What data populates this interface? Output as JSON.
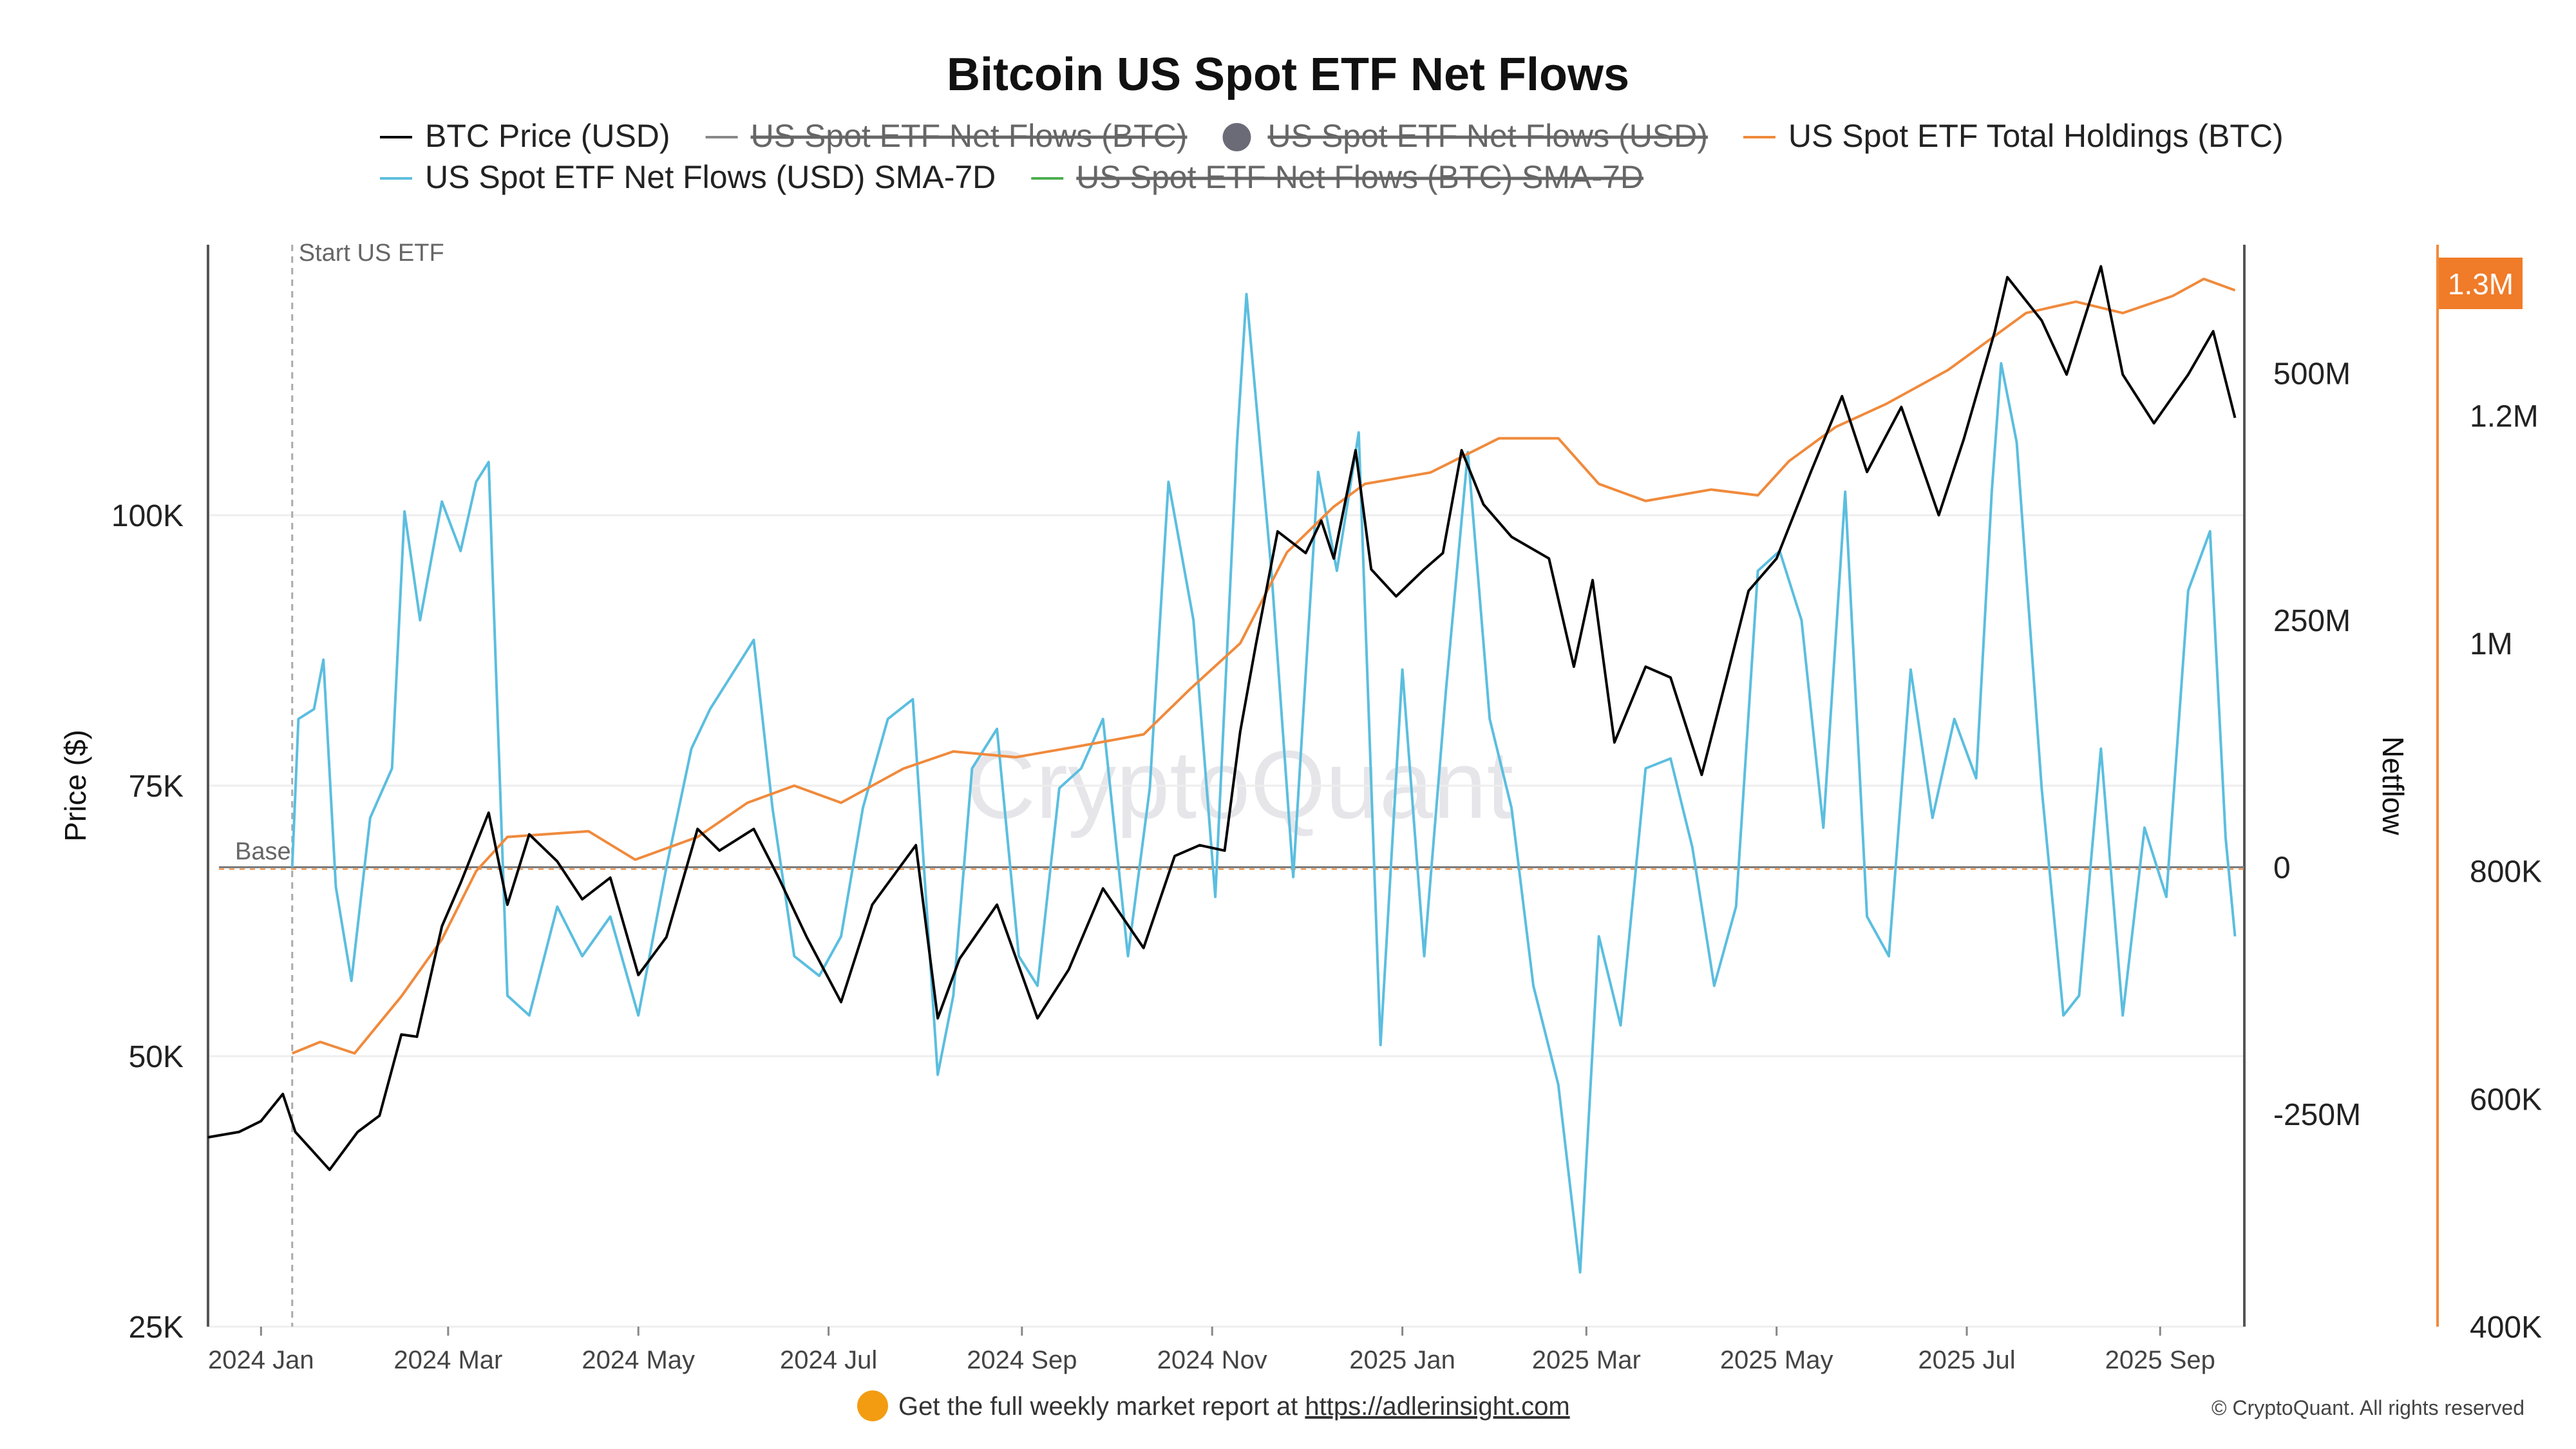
{
  "chart_data": {
    "type": "line",
    "title": "Bitcoin US Spot ETF Net Flows",
    "legend": [
      {
        "label": "BTC Price (USD)",
        "color": "#000000",
        "active": true
      },
      {
        "label": "US Spot ETF Net Flows (BTC)",
        "color": "#888888",
        "active": false
      },
      {
        "label": "US Spot ETF Net Flows (USD)",
        "color": "#777777",
        "active": false
      },
      {
        "label": "US Spot ETF Total Holdings (BTC)",
        "color": "#f08a3c",
        "active": true
      },
      {
        "label": "US Spot ETF Net Flows (USD) SMA-7D",
        "color": "#5bbedf",
        "active": true
      },
      {
        "label": "US Spot ETF Net Flows (BTC) SMA-7D",
        "color": "#4caf50",
        "active": false
      }
    ],
    "legend_position": "top-center",
    "x_ticks": [
      "2024 Jan",
      "2024 Mar",
      "2024 May",
      "2024 Jul",
      "2024 Sep",
      "2024 Nov",
      "2025 Jan",
      "2025 Mar",
      "2025 May",
      "2025 Jul",
      "2025 Sep"
    ],
    "x_range": [
      "2023-12-15",
      "2025-09-28"
    ],
    "y_left": {
      "label": "Price ($)",
      "ticks": [
        "25K",
        "50K",
        "75K",
        "100K"
      ],
      "range": [
        25000,
        125000
      ]
    },
    "y_right_netflow": {
      "label": "Netflow",
      "ticks": [
        "-250M",
        "0",
        "250M",
        "500M"
      ],
      "range": [
        -465000000,
        630000000
      ]
    },
    "y_right_holdings": {
      "ticks": [
        "400K",
        "600K",
        "800K",
        "1M",
        "1.2M"
      ],
      "range": [
        400000,
        1350000
      ],
      "current_badge": "1.3M"
    },
    "grid": "horizontal",
    "annotations": {
      "start_label": "Start US ETF",
      "start_date": "2024-01-11",
      "base_label": "Base"
    },
    "watermark": "CryptoQuant",
    "series": [
      {
        "name": "BTC Price (USD)",
        "axis": "left",
        "color": "#000000",
        "points": [
          [
            "2023-12-15",
            42500
          ],
          [
            "2023-12-25",
            43000
          ],
          [
            "2024-01-01",
            44000
          ],
          [
            "2024-01-08",
            46500
          ],
          [
            "2024-01-12",
            43000
          ],
          [
            "2024-01-23",
            39500
          ],
          [
            "2024-02-01",
            43000
          ],
          [
            "2024-02-08",
            44500
          ],
          [
            "2024-02-15",
            52000
          ],
          [
            "2024-02-20",
            51800
          ],
          [
            "2024-02-28",
            62000
          ],
          [
            "2024-03-05",
            66000
          ],
          [
            "2024-03-14",
            72500
          ],
          [
            "2024-03-20",
            64000
          ],
          [
            "2024-03-27",
            70500
          ],
          [
            "2024-04-05",
            68000
          ],
          [
            "2024-04-13",
            64500
          ],
          [
            "2024-04-22",
            66500
          ],
          [
            "2024-05-01",
            57500
          ],
          [
            "2024-05-10",
            61000
          ],
          [
            "2024-05-20",
            71000
          ],
          [
            "2024-05-27",
            69000
          ],
          [
            "2024-06-07",
            71000
          ],
          [
            "2024-06-15",
            66500
          ],
          [
            "2024-06-24",
            61000
          ],
          [
            "2024-07-05",
            55000
          ],
          [
            "2024-07-15",
            64000
          ],
          [
            "2024-07-29",
            69500
          ],
          [
            "2024-08-05",
            53500
          ],
          [
            "2024-08-12",
            59000
          ],
          [
            "2024-08-24",
            64000
          ],
          [
            "2024-09-06",
            53500
          ],
          [
            "2024-09-16",
            58000
          ],
          [
            "2024-09-27",
            65500
          ],
          [
            "2024-10-10",
            60000
          ],
          [
            "2024-10-20",
            68500
          ],
          [
            "2024-10-28",
            69500
          ],
          [
            "2024-11-05",
            69000
          ],
          [
            "2024-11-10",
            80000
          ],
          [
            "2024-11-15",
            88000
          ],
          [
            "2024-11-22",
            98500
          ],
          [
            "2024-12-01",
            96500
          ],
          [
            "2024-12-06",
            99500
          ],
          [
            "2024-12-10",
            96000
          ],
          [
            "2024-12-17",
            106000
          ],
          [
            "2024-12-22",
            95000
          ],
          [
            "2024-12-30",
            92500
          ],
          [
            "2025-01-08",
            95000
          ],
          [
            "2025-01-14",
            96500
          ],
          [
            "2025-01-20",
            106000
          ],
          [
            "2025-01-27",
            101000
          ],
          [
            "2025-02-05",
            98000
          ],
          [
            "2025-02-17",
            96000
          ],
          [
            "2025-02-25",
            86000
          ],
          [
            "2025-03-03",
            94000
          ],
          [
            "2025-03-10",
            79000
          ],
          [
            "2025-03-20",
            86000
          ],
          [
            "2025-03-28",
            85000
          ],
          [
            "2025-04-07",
            76000
          ],
          [
            "2025-04-15",
            85000
          ],
          [
            "2025-04-22",
            93000
          ],
          [
            "2025-05-01",
            96000
          ],
          [
            "2025-05-12",
            104000
          ],
          [
            "2025-05-22",
            111000
          ],
          [
            "2025-05-30",
            104000
          ],
          [
            "2025-06-10",
            110000
          ],
          [
            "2025-06-22",
            100000
          ],
          [
            "2025-06-30",
            107000
          ],
          [
            "2025-07-10",
            117000
          ],
          [
            "2025-07-14",
            122000
          ],
          [
            "2025-07-25",
            118000
          ],
          [
            "2025-08-02",
            113000
          ],
          [
            "2025-08-13",
            123000
          ],
          [
            "2025-08-20",
            113000
          ],
          [
            "2025-08-30",
            108500
          ],
          [
            "2025-09-10",
            113000
          ],
          [
            "2025-09-18",
            117000
          ],
          [
            "2025-09-25",
            109000
          ]
        ]
      },
      {
        "name": "US Spot ETF Total Holdings (BTC)",
        "axis": "right_holdings",
        "color": "#f08a3c",
        "points": [
          [
            "2024-01-11",
            640000
          ],
          [
            "2024-01-20",
            650000
          ],
          [
            "2024-01-31",
            640000
          ],
          [
            "2024-02-15",
            690000
          ],
          [
            "2024-02-28",
            740000
          ],
          [
            "2024-03-10",
            800000
          ],
          [
            "2024-03-20",
            830000
          ],
          [
            "2024-04-15",
            835000
          ],
          [
            "2024-04-30",
            810000
          ],
          [
            "2024-05-20",
            830000
          ],
          [
            "2024-06-05",
            860000
          ],
          [
            "2024-06-20",
            875000
          ],
          [
            "2024-07-05",
            860000
          ],
          [
            "2024-07-25",
            890000
          ],
          [
            "2024-08-10",
            905000
          ],
          [
            "2024-08-30",
            900000
          ],
          [
            "2024-09-20",
            910000
          ],
          [
            "2024-10-10",
            920000
          ],
          [
            "2024-10-25",
            960000
          ],
          [
            "2024-11-10",
            1000000
          ],
          [
            "2024-11-25",
            1080000
          ],
          [
            "2024-12-10",
            1120000
          ],
          [
            "2024-12-20",
            1140000
          ],
          [
            "2025-01-10",
            1150000
          ],
          [
            "2025-02-01",
            1180000
          ],
          [
            "2025-02-20",
            1180000
          ],
          [
            "2025-03-05",
            1140000
          ],
          [
            "2025-03-20",
            1125000
          ],
          [
            "2025-04-10",
            1135000
          ],
          [
            "2025-04-25",
            1130000
          ],
          [
            "2025-05-05",
            1160000
          ],
          [
            "2025-05-20",
            1190000
          ],
          [
            "2025-06-05",
            1210000
          ],
          [
            "2025-06-25",
            1240000
          ],
          [
            "2025-07-05",
            1260000
          ],
          [
            "2025-07-20",
            1290000
          ],
          [
            "2025-08-05",
            1300000
          ],
          [
            "2025-08-20",
            1290000
          ],
          [
            "2025-09-05",
            1305000
          ],
          [
            "2025-09-15",
            1320000
          ],
          [
            "2025-09-25",
            1310000
          ]
        ]
      },
      {
        "name": "US Spot ETF Net Flows (USD) SMA-7D",
        "axis": "right_netflow",
        "color": "#5bbedf",
        "points": [
          [
            "2024-01-11",
            0
          ],
          [
            "2024-01-13",
            150000000
          ],
          [
            "2024-01-18",
            160000000
          ],
          [
            "2024-01-21",
            210000000
          ],
          [
            "2024-01-25",
            -20000000
          ],
          [
            "2024-01-30",
            -115000000
          ],
          [
            "2024-02-05",
            50000000
          ],
          [
            "2024-02-12",
            100000000
          ],
          [
            "2024-02-16",
            360000000
          ],
          [
            "2024-02-21",
            250000000
          ],
          [
            "2024-02-28",
            370000000
          ],
          [
            "2024-03-05",
            320000000
          ],
          [
            "2024-03-10",
            390000000
          ],
          [
            "2024-03-14",
            410000000
          ],
          [
            "2024-03-20",
            -130000000
          ],
          [
            "2024-03-27",
            -150000000
          ],
          [
            "2024-04-05",
            -40000000
          ],
          [
            "2024-04-13",
            -90000000
          ],
          [
            "2024-04-22",
            -50000000
          ],
          [
            "2024-05-01",
            -150000000
          ],
          [
            "2024-05-10",
            0
          ],
          [
            "2024-05-18",
            120000000
          ],
          [
            "2024-05-24",
            160000000
          ],
          [
            "2024-06-07",
            230000000
          ],
          [
            "2024-06-13",
            60000000
          ],
          [
            "2024-06-20",
            -90000000
          ],
          [
            "2024-06-28",
            -110000000
          ],
          [
            "2024-07-05",
            -70000000
          ],
          [
            "2024-07-12",
            60000000
          ],
          [
            "2024-07-20",
            150000000
          ],
          [
            "2024-07-28",
            170000000
          ],
          [
            "2024-08-05",
            -210000000
          ],
          [
            "2024-08-10",
            -130000000
          ],
          [
            "2024-08-16",
            100000000
          ],
          [
            "2024-08-24",
            140000000
          ],
          [
            "2024-08-31",
            -90000000
          ],
          [
            "2024-09-06",
            -120000000
          ],
          [
            "2024-09-13",
            80000000
          ],
          [
            "2024-09-20",
            100000000
          ],
          [
            "2024-09-27",
            150000000
          ],
          [
            "2024-10-05",
            -90000000
          ],
          [
            "2024-10-12",
            80000000
          ],
          [
            "2024-10-18",
            390000000
          ],
          [
            "2024-10-26",
            250000000
          ],
          [
            "2024-11-02",
            -30000000
          ],
          [
            "2024-11-09",
            430000000
          ],
          [
            "2024-11-12",
            580000000
          ],
          [
            "2024-11-20",
            300000000
          ],
          [
            "2024-11-27",
            -10000000
          ],
          [
            "2024-12-05",
            400000000
          ],
          [
            "2024-12-11",
            300000000
          ],
          [
            "2024-12-18",
            440000000
          ],
          [
            "2024-12-25",
            -180000000
          ],
          [
            "2025-01-01",
            200000000
          ],
          [
            "2025-01-08",
            -90000000
          ],
          [
            "2025-01-15",
            180000000
          ],
          [
            "2025-01-22",
            420000000
          ],
          [
            "2025-01-29",
            150000000
          ],
          [
            "2025-02-05",
            60000000
          ],
          [
            "2025-02-12",
            -120000000
          ],
          [
            "2025-02-20",
            -220000000
          ],
          [
            "2025-02-27",
            -410000000
          ],
          [
            "2025-03-05",
            -70000000
          ],
          [
            "2025-03-12",
            -160000000
          ],
          [
            "2025-03-20",
            100000000
          ],
          [
            "2025-03-28",
            110000000
          ],
          [
            "2025-04-04",
            20000000
          ],
          [
            "2025-04-11",
            -120000000
          ],
          [
            "2025-04-18",
            -40000000
          ],
          [
            "2025-04-25",
            300000000
          ],
          [
            "2025-05-02",
            320000000
          ],
          [
            "2025-05-09",
            250000000
          ],
          [
            "2025-05-16",
            40000000
          ],
          [
            "2025-05-23",
            380000000
          ],
          [
            "2025-05-30",
            -50000000
          ],
          [
            "2025-06-06",
            -90000000
          ],
          [
            "2025-06-13",
            200000000
          ],
          [
            "2025-06-20",
            50000000
          ],
          [
            "2025-06-27",
            150000000
          ],
          [
            "2025-07-04",
            90000000
          ],
          [
            "2025-07-09",
            380000000
          ],
          [
            "2025-07-12",
            510000000
          ],
          [
            "2025-07-17",
            430000000
          ],
          [
            "2025-07-25",
            80000000
          ],
          [
            "2025-08-01",
            -150000000
          ],
          [
            "2025-08-06",
            -130000000
          ],
          [
            "2025-08-13",
            120000000
          ],
          [
            "2025-08-20",
            -150000000
          ],
          [
            "2025-08-27",
            40000000
          ],
          [
            "2025-09-03",
            -30000000
          ],
          [
            "2025-09-10",
            280000000
          ],
          [
            "2025-09-17",
            340000000
          ],
          [
            "2025-09-22",
            30000000
          ],
          [
            "2025-09-25",
            -70000000
          ]
        ]
      }
    ]
  },
  "footer": {
    "text": "Get the full weekly market report at ",
    "link": "https://adlerinsight.com"
  },
  "copyright": "© CryptoQuant. All rights reserved"
}
